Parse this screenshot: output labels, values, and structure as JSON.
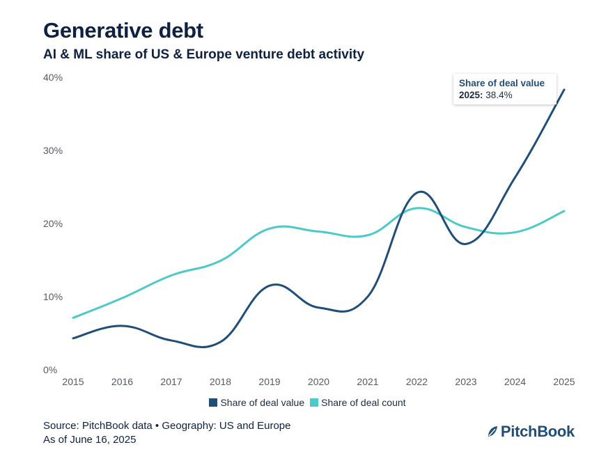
{
  "title": "Generative debt",
  "subtitle": "AI & ML share of US & Europe venture debt activity",
  "chart_data": {
    "type": "line",
    "x": [
      "2015",
      "2016",
      "2017",
      "2018",
      "2019",
      "2020",
      "2021",
      "2022",
      "2023",
      "2024",
      "2025"
    ],
    "series": [
      {
        "name": "Share of deal value",
        "color": "#1f4e79",
        "values": [
          4.4,
          6.1,
          4.1,
          3.9,
          11.6,
          8.6,
          10.1,
          24.3,
          17.3,
          26.4,
          38.4
        ]
      },
      {
        "name": "Share of deal count",
        "color": "#4dc9c9",
        "values": [
          7.2,
          9.9,
          13.0,
          15.0,
          19.4,
          19.0,
          18.5,
          22.2,
          19.6,
          18.9,
          21.8
        ]
      }
    ],
    "yticks": [
      "0%",
      "10%",
      "20%",
      "30%",
      "40%"
    ],
    "ylim": [
      0,
      40
    ],
    "grid": false,
    "legend_position": "bottom-center"
  },
  "tooltip": {
    "title": "Share of deal value",
    "year_label": "2025:",
    "value": "38.4%"
  },
  "footer": {
    "source": "Source: PitchBook data • Geography: US and Europe",
    "date": "As of June 16, 2025"
  },
  "logo": {
    "text": "PitchBook",
    "icon": "pitchbook-leaf-icon"
  }
}
